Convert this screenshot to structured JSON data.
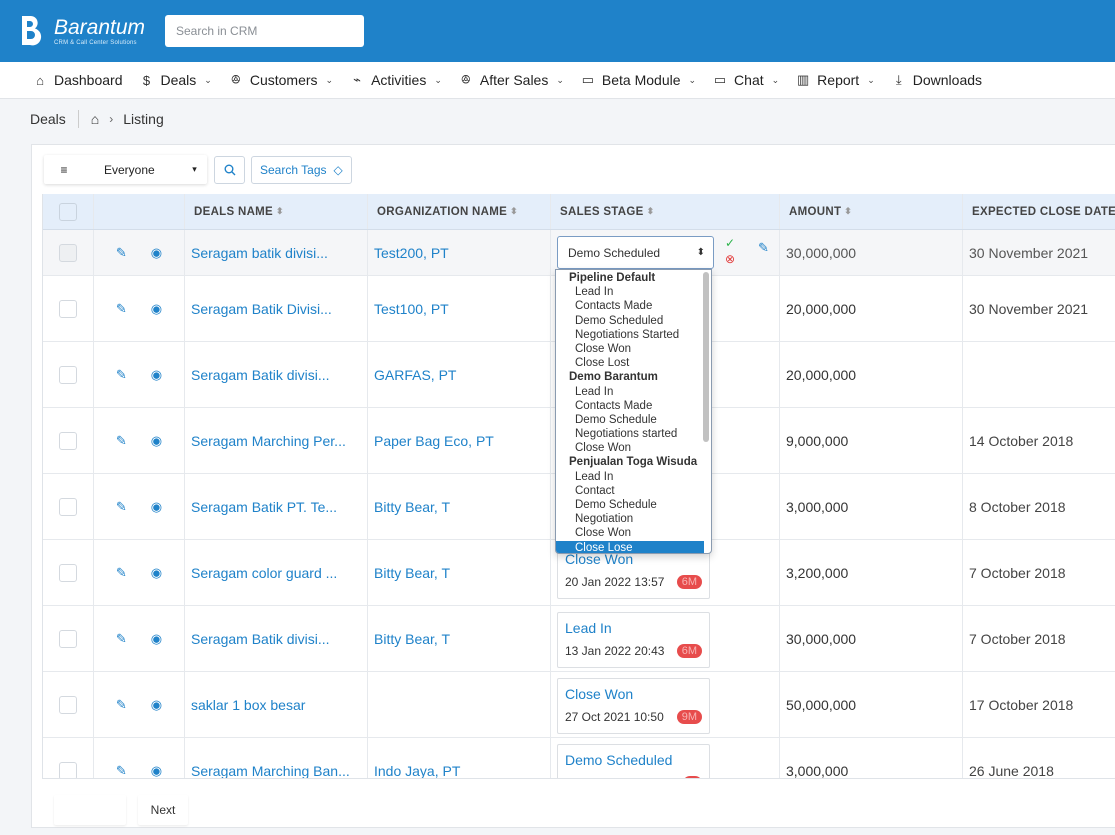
{
  "app": {
    "name": "Barantum",
    "tagline": "CRM & Call Center Solutions"
  },
  "search": {
    "placeholder": "Search in CRM"
  },
  "nav": [
    {
      "label": "Dashboard",
      "icon": "home-icon"
    },
    {
      "label": "Deals",
      "icon": "dollar-icon"
    },
    {
      "label": "Customers",
      "icon": "users-icon"
    },
    {
      "label": "Activities",
      "icon": "activity-icon"
    },
    {
      "label": "After Sales",
      "icon": "users-icon"
    },
    {
      "label": "Beta Module",
      "icon": "folder-icon"
    },
    {
      "label": "Chat",
      "icon": "chat-icon"
    },
    {
      "label": "Report",
      "icon": "bar-chart-icon"
    },
    {
      "label": "Downloads",
      "icon": "download-icon"
    }
  ],
  "breadcrumb": {
    "module": "Deals",
    "page": "Listing"
  },
  "toolbar": {
    "filter_value": "Everyone",
    "search_tags_label": "Search Tags"
  },
  "columns": {
    "deals_name": "DEALS NAME",
    "organization_name": "ORGANIZATION NAME",
    "sales_stage": "SALES STAGE",
    "amount": "AMOUNT",
    "expected_close_date": "EXPECTED CLOSE DATE"
  },
  "rows": [
    {
      "deal": "Seragam batik divisi...",
      "org": "Test200, PT",
      "stage": "",
      "stage_date": "",
      "badge": "",
      "amount": "30,000,000",
      "close_date": "30 November 2021"
    },
    {
      "deal": "Seragam Batik Divisi...",
      "org": "Test100, PT",
      "stage": "",
      "stage_date": "",
      "badge": "",
      "amount": "20,000,000",
      "close_date": "30 November 2021"
    },
    {
      "deal": "Seragam Batik divisi...",
      "org": "GARFAS, PT",
      "stage": "",
      "stage_date": "",
      "badge": "",
      "amount": "20,000,000",
      "close_date": ""
    },
    {
      "deal": "Seragam Marching Per...",
      "org": "Paper Bag Eco, PT",
      "stage": "",
      "stage_date": "",
      "badge": "",
      "amount": "9,000,000",
      "close_date": "14 October 2018"
    },
    {
      "deal": "Seragam Batik PT. Te...",
      "org": "Bitty Bear, T",
      "stage": "",
      "stage_date": "",
      "badge": "",
      "amount": "3,000,000",
      "close_date": "8 October 2018"
    },
    {
      "deal": "Seragam color guard ...",
      "org": "Bitty Bear, T",
      "stage": "Close Won",
      "stage_date": "20 Jan 2022 13:57",
      "badge": "6M",
      "amount": "3,200,000",
      "close_date": "7 October 2018"
    },
    {
      "deal": "Seragam Batik divisi...",
      "org": "Bitty Bear, T",
      "stage": "Lead In",
      "stage_date": "13 Jan 2022 20:43",
      "badge": "6M",
      "amount": "30,000,000",
      "close_date": "7 October 2018"
    },
    {
      "deal": "saklar 1 box besar",
      "org": "",
      "stage": "Close Won",
      "stage_date": "27 Oct 2021 10:50",
      "badge": "9M",
      "amount": "50,000,000",
      "close_date": "17 October 2018"
    },
    {
      "deal": "Seragam Marching Ban...",
      "org": "Indo Jaya, PT",
      "stage": "Demo Scheduled",
      "stage_date": "",
      "badge": "",
      "amount": "3,000,000",
      "close_date": "26 June 2018"
    }
  ],
  "stage_select": {
    "value": "Demo Scheduled",
    "groups": [
      {
        "label": "Pipeline Default",
        "options": [
          "Lead In",
          "Contacts Made",
          "Demo Scheduled",
          "Negotiations Started",
          "Close Won",
          "Close Lost"
        ]
      },
      {
        "label": "Demo Barantum",
        "options": [
          "Lead In",
          "Contacts Made",
          "Demo Schedule",
          "Negotiations started",
          "Close Won"
        ]
      },
      {
        "label": "Penjualan Toga Wisuda",
        "options": [
          "Lead In",
          "Contact",
          "Demo Schedule",
          "Negotiation",
          "Close Won",
          "Close Lose"
        ]
      }
    ],
    "highlighted": "Close Lose"
  },
  "pager": {
    "next_label": "Next"
  },
  "colors": {
    "brand": "#1f82c9",
    "header_bg": "#e4eefa",
    "badge": "#e74c4c",
    "ok": "#2bb34a",
    "cancel": "#e23b3b"
  }
}
